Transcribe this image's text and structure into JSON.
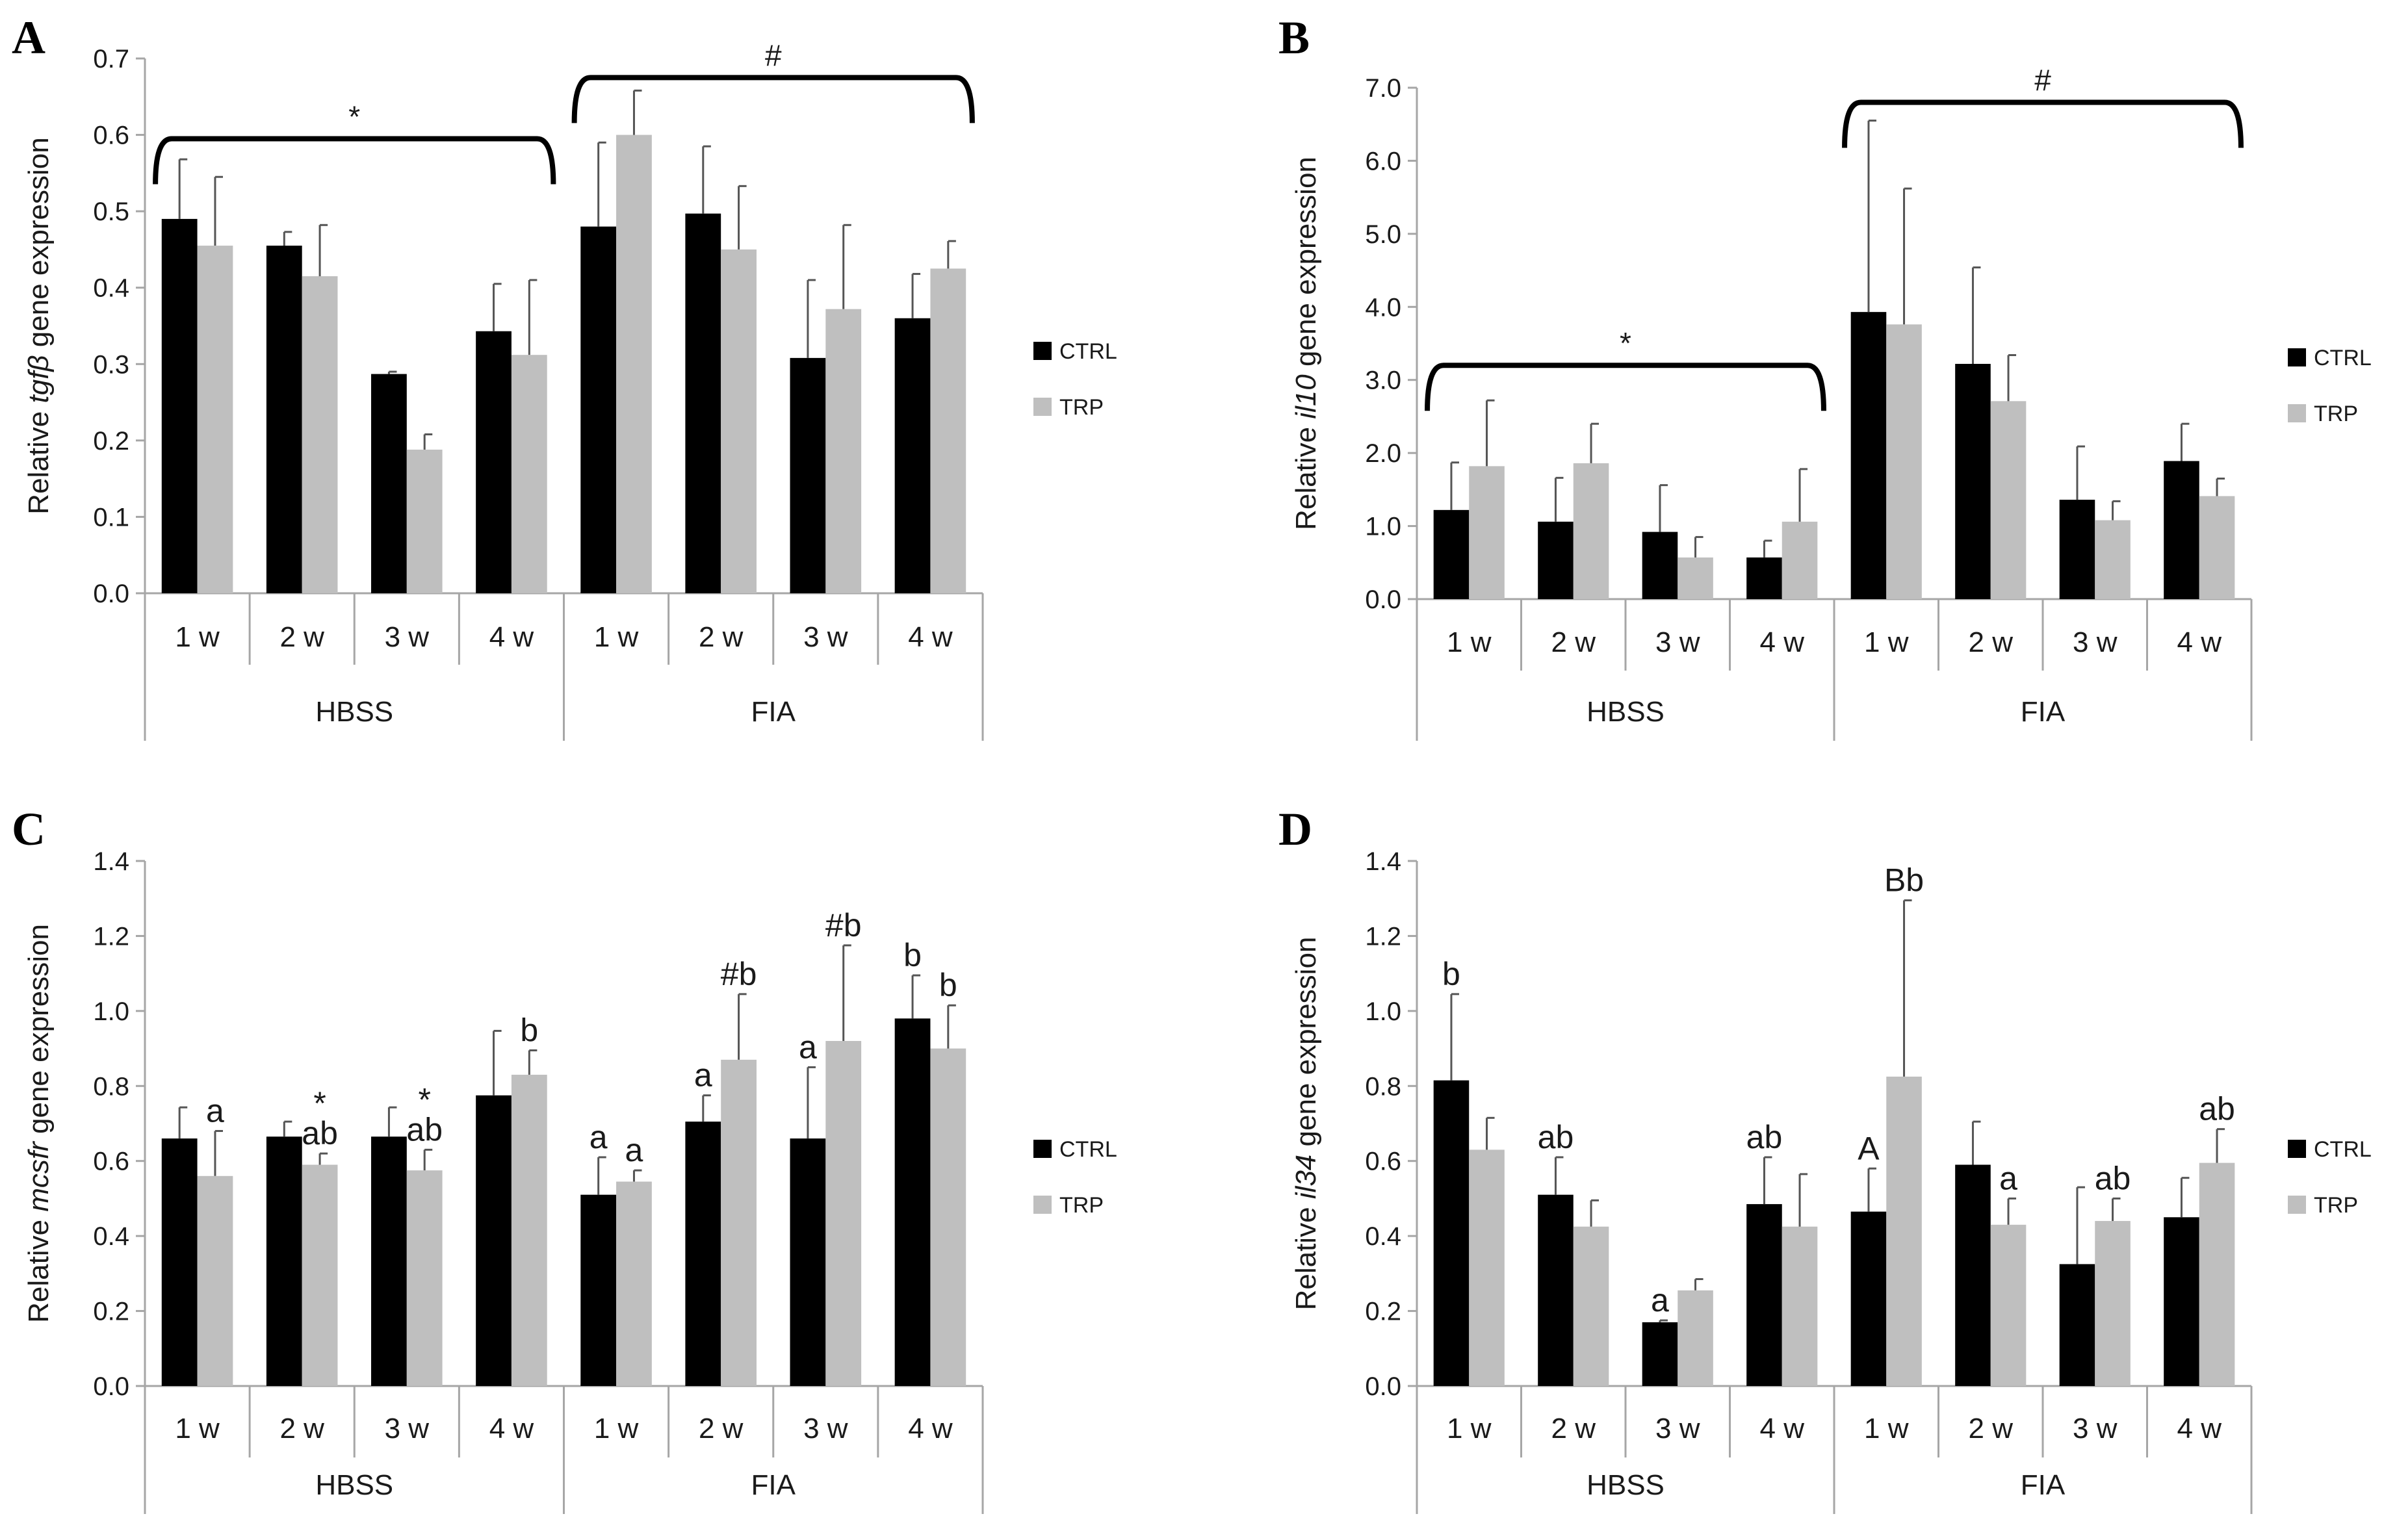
{
  "colors": {
    "ctrl": "#000000",
    "trp": "#bfbfbf",
    "axis": "#a6a6a6",
    "text": "#1a1a1a",
    "error": "#555555"
  },
  "chart_data": [
    {
      "panel": "A",
      "type": "bar",
      "title": "",
      "ylabel_parts": [
        "Relative ",
        "tgfβ",
        " gene expression"
      ],
      "ylim": [
        0,
        0.7
      ],
      "yticks": [
        "0.0",
        "0.1",
        "0.2",
        "0.3",
        "0.4",
        "0.5",
        "0.6",
        "0.7"
      ],
      "categories": [
        "1 w",
        "2 w",
        "3 w",
        "4 w",
        "1 w",
        "2 w",
        "3 w",
        "4 w"
      ],
      "groups": [
        "HBSS",
        "FIA"
      ],
      "legend": [
        "CTRL",
        "TRP"
      ],
      "series": [
        {
          "name": "CTRL",
          "values": [
            0.49,
            0.455,
            0.287,
            0.343,
            0.48,
            0.497,
            0.308,
            0.36
          ],
          "errors": [
            0.078,
            0.018,
            0.003,
            0.062,
            0.11,
            0.088,
            0.102,
            0.058
          ]
        },
        {
          "name": "TRP",
          "values": [
            0.455,
            0.415,
            0.188,
            0.312,
            0.6,
            0.45,
            0.372,
            0.425
          ],
          "errors": [
            0.09,
            0.067,
            0.02,
            0.098,
            0.058,
            0.083,
            0.11,
            0.036
          ]
        }
      ],
      "brackets": [
        {
          "label": "*",
          "from": 0,
          "to": 3,
          "y": 0.595
        },
        {
          "label": "#",
          "from": 4,
          "to": 7,
          "y": 0.675
        }
      ],
      "annotations": []
    },
    {
      "panel": "B",
      "type": "bar",
      "title": "",
      "ylabel_parts": [
        "Relative ",
        "il10",
        " gene expression"
      ],
      "ylim": [
        0,
        7.0
      ],
      "yticks": [
        "0.0",
        "1.0",
        "2.0",
        "3.0",
        "4.0",
        "5.0",
        "6.0",
        "7.0"
      ],
      "categories": [
        "1 w",
        "2 w",
        "3 w",
        "4 w",
        "1 w",
        "2 w",
        "3 w",
        "4 w"
      ],
      "groups": [
        "HBSS",
        "FIA"
      ],
      "legend": [
        "CTRL",
        "TRP"
      ],
      "series": [
        {
          "name": "CTRL",
          "values": [
            1.22,
            1.06,
            0.92,
            0.57,
            3.93,
            3.22,
            1.36,
            1.89
          ],
          "errors": [
            0.65,
            0.6,
            0.64,
            0.23,
            2.62,
            1.32,
            0.73,
            0.51
          ]
        },
        {
          "name": "TRP",
          "values": [
            1.82,
            1.86,
            0.57,
            1.06,
            3.76,
            2.71,
            1.08,
            1.41
          ],
          "errors": [
            0.9,
            0.54,
            0.28,
            0.72,
            1.86,
            0.63,
            0.26,
            0.24
          ]
        }
      ],
      "brackets": [
        {
          "label": "*",
          "from": 0,
          "to": 3,
          "y": 3.2
        },
        {
          "label": "#",
          "from": 4,
          "to": 7,
          "y": 6.8
        }
      ],
      "annotations": []
    },
    {
      "panel": "C",
      "type": "bar",
      "title": "",
      "ylabel_parts": [
        "Relative ",
        "mcsfr",
        " gene expression"
      ],
      "ylim": [
        0,
        1.4
      ],
      "yticks": [
        "0.0",
        "0.2",
        "0.4",
        "0.6",
        "0.8",
        "1.0",
        "1.2",
        "1.4"
      ],
      "categories": [
        "1 w",
        "2 w",
        "3 w",
        "4 w",
        "1 w",
        "2 w",
        "3 w",
        "4 w"
      ],
      "groups": [
        "HBSS",
        "FIA"
      ],
      "legend": [
        "CTRL",
        "TRP"
      ],
      "series": [
        {
          "name": "CTRL",
          "values": [
            0.66,
            0.665,
            0.665,
            0.775,
            0.51,
            0.705,
            0.66,
            0.98
          ],
          "errors": [
            0.083,
            0.04,
            0.078,
            0.172,
            0.1,
            0.07,
            0.19,
            0.115
          ]
        },
        {
          "name": "TRP",
          "values": [
            0.56,
            0.59,
            0.575,
            0.83,
            0.545,
            0.87,
            0.92,
            0.9
          ],
          "errors": [
            0.12,
            0.03,
            0.055,
            0.065,
            0.03,
            0.175,
            0.255,
            0.115
          ]
        }
      ],
      "brackets": [],
      "annotations": [
        {
          "text": "a",
          "cat": 0,
          "series": 1,
          "at": 0.68,
          "line": 0
        },
        {
          "text": "*",
          "cat": 1,
          "series": 1,
          "at": 0.62,
          "line": 1
        },
        {
          "text": "ab",
          "cat": 1,
          "series": 1,
          "at": 0.62,
          "line": 0
        },
        {
          "text": "*",
          "cat": 2,
          "series": 1,
          "at": 0.63,
          "line": 1
        },
        {
          "text": "ab",
          "cat": 2,
          "series": 1,
          "at": 0.63,
          "line": 0
        },
        {
          "text": "b",
          "cat": 3,
          "series": 1,
          "at": 0.895,
          "line": 0
        },
        {
          "text": "a",
          "cat": 4,
          "series": 0,
          "at": 0.61,
          "line": 0
        },
        {
          "text": "a",
          "cat": 4,
          "series": 1,
          "at": 0.575,
          "line": 0
        },
        {
          "text": "a",
          "cat": 5,
          "series": 0,
          "at": 0.775,
          "line": 0
        },
        {
          "text": "#b",
          "cat": 5,
          "series": 1,
          "at": 1.045,
          "line": 0
        },
        {
          "text": "a",
          "cat": 6,
          "series": 0,
          "at": 0.85,
          "line": 0
        },
        {
          "text": "#b",
          "cat": 6,
          "series": 1,
          "at": 1.175,
          "line": 0
        },
        {
          "text": "b",
          "cat": 7,
          "series": 0,
          "at": 1.095,
          "line": 0
        },
        {
          "text": "b",
          "cat": 7,
          "series": 1,
          "at": 1.015,
          "line": 0
        }
      ]
    },
    {
      "panel": "D",
      "type": "bar",
      "title": "",
      "ylabel_parts": [
        "Relative ",
        "il34",
        " gene expression"
      ],
      "ylim": [
        0,
        1.4
      ],
      "yticks": [
        "0.0",
        "0.2",
        "0.4",
        "0.6",
        "0.8",
        "1.0",
        "1.2",
        "1.4"
      ],
      "categories": [
        "1 w",
        "2 w",
        "3 w",
        "4 w",
        "1 w",
        "2 w",
        "3 w",
        "4 w"
      ],
      "groups": [
        "HBSS",
        "FIA"
      ],
      "legend": [
        "CTRL",
        "TRP"
      ],
      "series": [
        {
          "name": "CTRL",
          "values": [
            0.815,
            0.51,
            0.17,
            0.485,
            0.465,
            0.59,
            0.325,
            0.45
          ],
          "errors": [
            0.23,
            0.1,
            0.005,
            0.125,
            0.115,
            0.115,
            0.205,
            0.105
          ]
        },
        {
          "name": "TRP",
          "values": [
            0.63,
            0.425,
            0.255,
            0.425,
            0.825,
            0.43,
            0.44,
            0.595
          ],
          "errors": [
            0.085,
            0.07,
            0.03,
            0.14,
            0.47,
            0.07,
            0.06,
            0.09
          ]
        }
      ],
      "brackets": [],
      "annotations": [
        {
          "text": "b",
          "cat": 0,
          "series": 0,
          "at": 1.045,
          "line": 0
        },
        {
          "text": "ab",
          "cat": 1,
          "series": 0,
          "at": 0.61,
          "line": 0
        },
        {
          "text": "a",
          "cat": 2,
          "series": 0,
          "at": 0.175,
          "line": 0
        },
        {
          "text": "ab",
          "cat": 3,
          "series": 0,
          "at": 0.61,
          "line": 0
        },
        {
          "text": "A",
          "cat": 4,
          "series": 0,
          "at": 0.58,
          "line": 0
        },
        {
          "text": "Bb",
          "cat": 4,
          "series": 1,
          "at": 1.295,
          "line": 0
        },
        {
          "text": "a",
          "cat": 5,
          "series": 1,
          "at": 0.5,
          "line": 0
        },
        {
          "text": "ab",
          "cat": 6,
          "series": 1,
          "at": 0.5,
          "line": 0
        },
        {
          "text": "ab",
          "cat": 7,
          "series": 1,
          "at": 0.685,
          "line": 0
        }
      ]
    }
  ]
}
